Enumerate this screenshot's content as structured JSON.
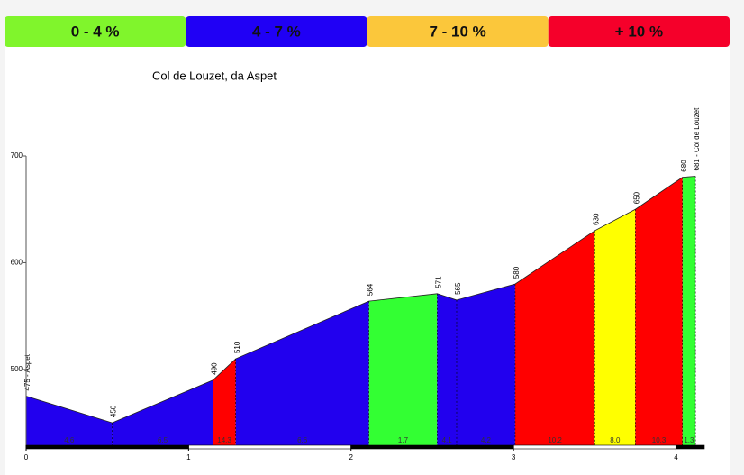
{
  "chart_data": {
    "type": "area",
    "title": "Col de Louzet, da Aspet",
    "legend": [
      {
        "label": "0 - 4 %",
        "color": "#80f52c"
      },
      {
        "label": "4 - 7 %",
        "color": "#2000f5"
      },
      {
        "label": "7 - 10 %",
        "color": "#fbc73b"
      },
      {
        "label": "+ 10 %",
        "color": "#f5002a"
      }
    ],
    "x": [
      0,
      0.53,
      1.15,
      1.29,
      2.11,
      2.53,
      2.65,
      3.01,
      3.5,
      3.75,
      4.04,
      4.12
    ],
    "values": [
      475,
      450,
      490,
      510,
      564,
      571,
      565,
      580,
      630,
      650,
      680,
      681
    ],
    "value_labels": [
      "475 - Aspet",
      "450",
      "490",
      "510",
      "564",
      "571",
      "565",
      "580",
      "630",
      "650",
      "680",
      "681 - Col de Louzet"
    ],
    "segments": [
      {
        "gradient": 4.6,
        "color": "#2200ee"
      },
      {
        "gradient": 6.5,
        "color": "#2200ee"
      },
      {
        "gradient": 14.3,
        "color": "#ff0000"
      },
      {
        "gradient": 6.6,
        "color": "#2200ee"
      },
      {
        "gradient": 1.7,
        "color": "#33ff33"
      },
      {
        "gradient": 4.1,
        "color": "#2200ee"
      },
      {
        "gradient": 4.2,
        "color": "#2200ee"
      },
      {
        "gradient": 10.2,
        "color": "#ff0000"
      },
      {
        "gradient": {
          "value": 8,
          "label": "8.0"
        },
        "color": "#ffff00"
      },
      {
        "gradient": 10.3,
        "color": "#ff0000"
      },
      {
        "gradient": 1.3,
        "color": "#33ff33"
      }
    ],
    "xlim": [
      0,
      4.33
    ],
    "xticks": [
      0,
      1,
      2,
      3,
      4
    ],
    "ylim": [
      429,
      700
    ],
    "yticks": [
      500,
      600,
      700
    ]
  }
}
